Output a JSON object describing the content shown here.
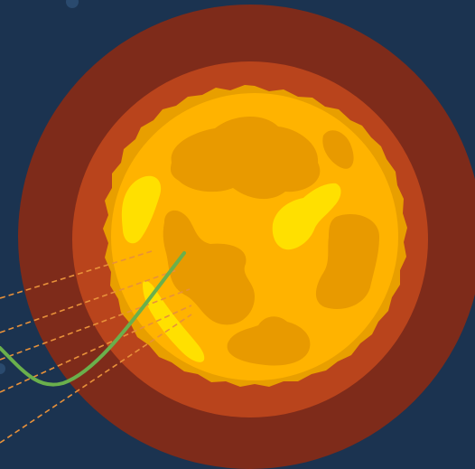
{
  "scene": {
    "subject": "sun",
    "colors": {
      "background": "#1b3350",
      "background_dot": "#2a4a6e",
      "outer_corona": "#7e2b1a",
      "inner_corona": "#b9441c",
      "surface_edge": "#e89f00",
      "surface": "#ffb300",
      "sunspot": "#e89a00",
      "flare_highlight": "#ffe000",
      "magnetic_line": "#6ab04c",
      "ray_lines": "#e8913a"
    },
    "counts": {
      "sunspots": 6,
      "highlights": 3,
      "rays": 5
    }
  }
}
